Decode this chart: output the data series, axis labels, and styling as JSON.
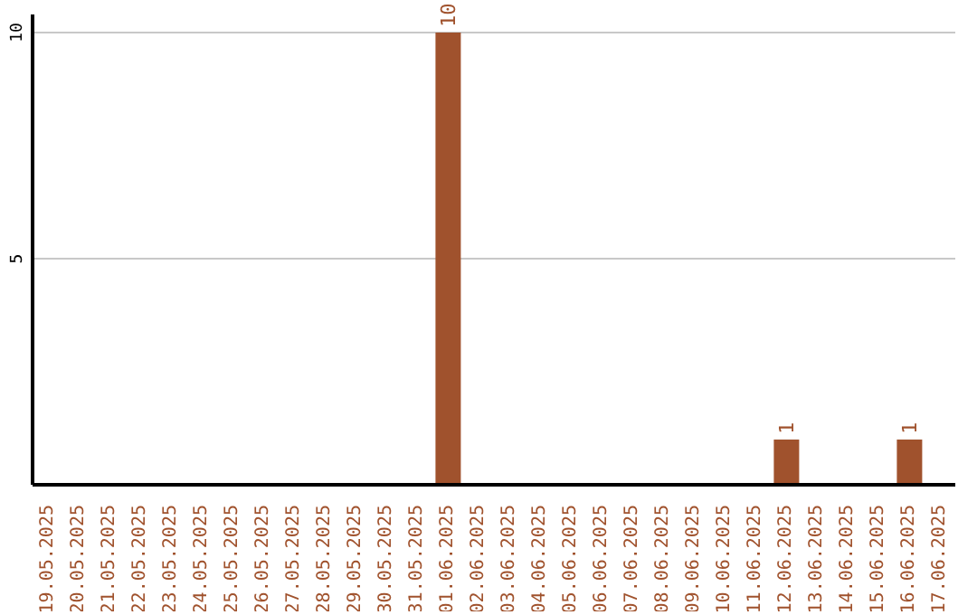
{
  "chart_data": {
    "type": "bar",
    "categories": [
      "19.05.2025",
      "20.05.2025",
      "21.05.2025",
      "22.05.2025",
      "23.05.2025",
      "24.05.2025",
      "25.05.2025",
      "26.05.2025",
      "27.05.2025",
      "28.05.2025",
      "29.05.2025",
      "30.05.2025",
      "31.05.2025",
      "01.06.2025",
      "02.06.2025",
      "03.06.2025",
      "04.06.2025",
      "05.06.2025",
      "06.06.2025",
      "07.06.2025",
      "08.06.2025",
      "09.06.2025",
      "10.06.2025",
      "11.06.2025",
      "12.06.2025",
      "13.06.2025",
      "14.06.2025",
      "15.06.2025",
      "16.06.2025",
      "17.06.2025"
    ],
    "values": [
      0,
      0,
      0,
      0,
      0,
      0,
      0,
      0,
      0,
      0,
      0,
      0,
      0,
      10,
      0,
      0,
      0,
      0,
      0,
      0,
      0,
      0,
      0,
      0,
      1,
      0,
      0,
      0,
      1,
      0
    ],
    "value_labels": [
      null,
      null,
      null,
      null,
      null,
      null,
      null,
      null,
      null,
      null,
      null,
      null,
      null,
      "10",
      null,
      null,
      null,
      null,
      null,
      null,
      null,
      null,
      null,
      null,
      "1",
      null,
      null,
      null,
      "1",
      null
    ],
    "color": "#a0522d",
    "ylim": [
      0,
      10.4
    ],
    "yticks": [
      5,
      10
    ],
    "grid": "y"
  }
}
